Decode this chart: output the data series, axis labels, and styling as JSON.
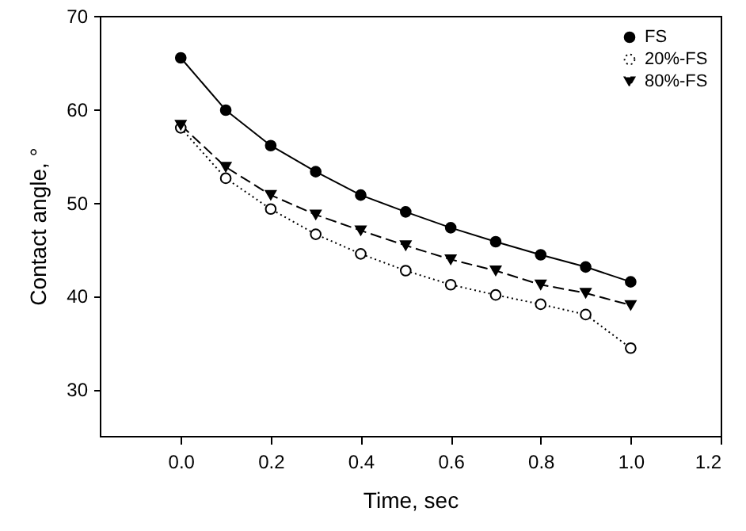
{
  "chart_data": {
    "type": "line",
    "xlabel": "Time, sec",
    "ylabel": "Contact angle, °",
    "x": [
      0,
      0.1,
      0.2,
      0.3,
      0.4,
      0.5,
      0.6,
      0.7,
      0.8,
      0.9,
      1.0
    ],
    "series": [
      {
        "name": "FS",
        "color": "#000000",
        "marker": "circle",
        "line_style": "solid",
        "values": [
          65.5,
          59.9,
          56.1,
          53.3,
          50.8,
          49.0,
          47.3,
          45.8,
          44.4,
          43.1,
          41.5
        ]
      },
      {
        "name": "20%-FS",
        "color": "#000000",
        "marker": "circle-open",
        "line_style": "dotted",
        "values": [
          58.0,
          52.6,
          49.3,
          46.6,
          44.5,
          42.7,
          41.2,
          40.1,
          39.1,
          38.0,
          34.4
        ]
      },
      {
        "name": "80%-FS",
        "color": "#000000",
        "marker": "triangle-down",
        "line_style": "dashed",
        "values": [
          58.3,
          53.8,
          50.8,
          48.7,
          47.0,
          45.4,
          43.9,
          42.7,
          41.2,
          40.3,
          39.0
        ]
      }
    ],
    "xlim": [
      -0.18,
      1.2
    ],
    "xticks": [
      {
        "value": 0,
        "label": "0.0"
      },
      {
        "value": 0.2,
        "label": "0.2"
      },
      {
        "value": 0.4,
        "label": "0.4"
      },
      {
        "value": 0.6,
        "label": "0.6"
      },
      {
        "value": 0.8,
        "label": "0.8"
      },
      {
        "value": 1.0,
        "label": "1.0"
      },
      {
        "value": 1.2,
        "label": "1.2"
      }
    ],
    "ylim": [
      25,
      70
    ],
    "yticks": [
      30,
      40,
      50,
      60,
      70
    ],
    "grid": false,
    "legend": "top right"
  }
}
